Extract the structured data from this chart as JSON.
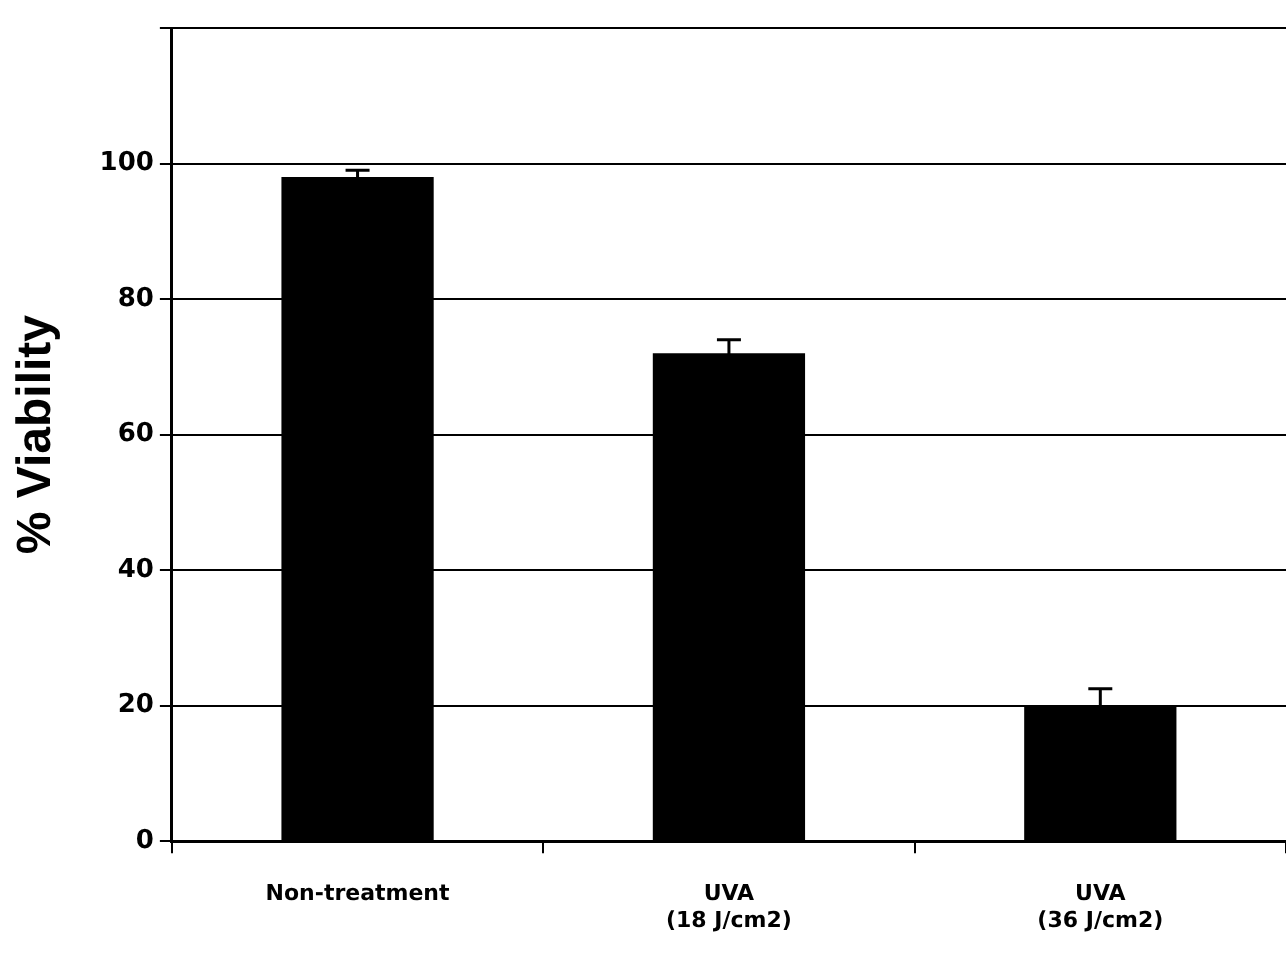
{
  "chart_data": {
    "type": "bar",
    "ylabel": "% Viability",
    "categories": [
      "Non-treatment",
      "UVA\n(18 J/cm2)",
      "UVA\n(36 J/cm2)"
    ],
    "values": [
      98,
      72,
      20
    ],
    "errors": [
      1,
      2,
      2.5
    ],
    "color": "#000000",
    "ylim": [
      0,
      120
    ],
    "yticks": [
      0,
      20,
      40,
      60,
      80,
      100,
      {
        "value": 120,
        "label": null
      }
    ],
    "grid": "y",
    "legend": false
  }
}
